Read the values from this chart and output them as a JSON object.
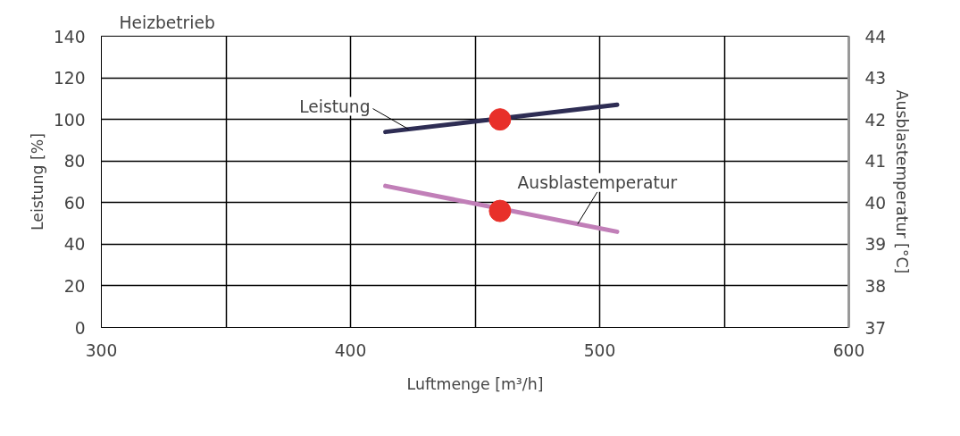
{
  "chart_data": {
    "type": "line",
    "title": "Heizbetrieb",
    "xlabel": "Luftmenge [m³/h]",
    "ylabel": "Leistung [%]",
    "y2label": "Ausblastemperatur [°C]",
    "xlim": [
      300,
      600
    ],
    "xticks": [
      300,
      {
        "value": 350,
        "label": null
      },
      400,
      {
        "value": 450,
        "label": null
      },
      500,
      {
        "value": 550,
        "label": null
      },
      600
    ],
    "ylim": [
      0,
      140
    ],
    "yticks": [
      0,
      20,
      40,
      60,
      80,
      100,
      120,
      140
    ],
    "y2lim": [
      37,
      44
    ],
    "y2ticks": [
      37,
      38,
      39,
      40,
      41,
      42,
      43,
      44
    ],
    "grid": true,
    "line_style": "solid",
    "series": [
      {
        "name": "Leistung",
        "color": "#2e2d54",
        "x": [
          414,
          507
        ],
        "values": [
          94,
          107
        ]
      },
      {
        "name": "Ausblastemperatur",
        "color": "#c17fb8",
        "x": [
          414,
          507
        ],
        "values": [
          40.4,
          39.3
        ],
        "axis": "y2"
      },
      {
        "type": "scatter",
        "marker": "circle",
        "color": "#e8302a",
        "x": [
          460
        ],
        "values": [
          100
        ]
      },
      {
        "type": "scatter",
        "marker": "circle",
        "color": "#e8302a",
        "x": [
          460
        ],
        "values": [
          39.8
        ],
        "axis": "y2"
      }
    ]
  }
}
